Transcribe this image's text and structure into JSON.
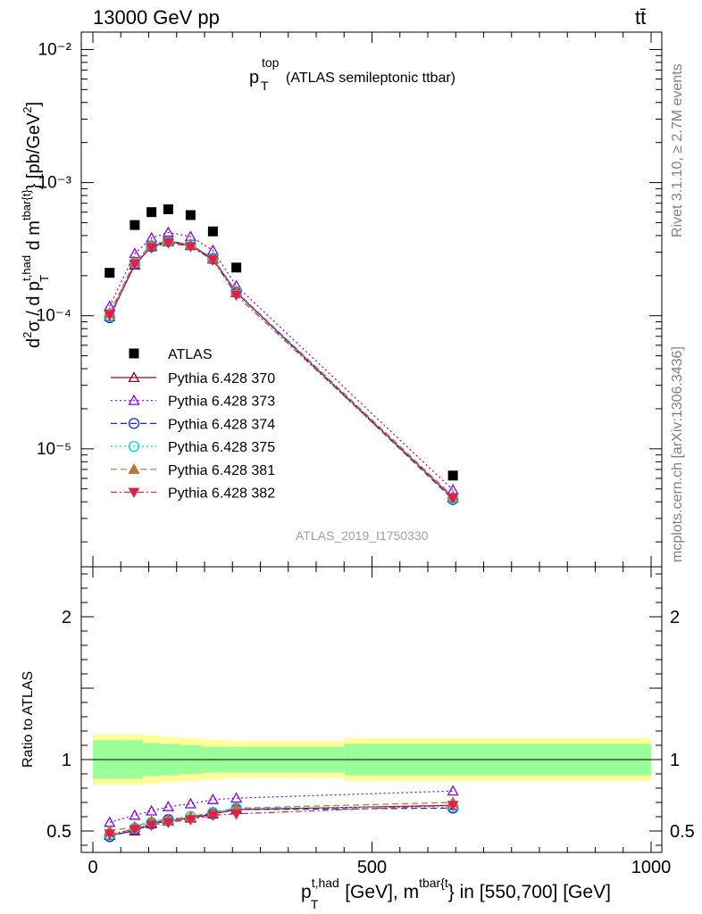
{
  "header": {
    "energy_label": "13000 GeV pp",
    "process_label": "tt̄"
  },
  "side_labels": {
    "rivet": "Rivet 3.1.10, ≥ 2.7M events",
    "mcplots": "mcplots.cern.ch [arXiv:1306.3436]"
  },
  "chart_data": {
    "type": "scatter",
    "title": {
      "main": "p",
      "sup": "top",
      "sub": "T",
      "rest": "(ATLAS semileptonic ttbar)"
    },
    "watermark": "ATLAS_2019_I1750330",
    "ylabel_main": "d²σ / d p_T^{t,had} d m^{tbar{t}} [pb/GeV²]",
    "ylabel_ratio": "Ratio to ATLAS",
    "xlabel": "p_T^{t,had} [GeV], m^{tbar{t}} in [550,700] [GeV]",
    "xlim": [
      0,
      1000
    ],
    "ylim_main": [
      1.3e-06,
      0.0135
    ],
    "yscale_main": "log",
    "ylim_ratio": [
      0.35,
      2.35
    ],
    "x_ticks": [
      "0",
      "500",
      "1000"
    ],
    "y_ticks_main": [
      "10⁻⁵",
      "10⁻⁴",
      "10⁻³",
      "10⁻²"
    ],
    "y_ticks_ratio": [
      "0.5",
      "1",
      "2"
    ],
    "legend_position": "left-middle",
    "x": [
      30,
      75,
      105,
      135,
      175,
      215,
      257,
      645
    ],
    "data": {
      "name": "ATLAS",
      "values": [
        0.00021,
        0.00048,
        0.0006,
        0.00063,
        0.00057,
        0.00043,
        0.00023,
        6.3e-06
      ],
      "band_inner_halfwidth": [
        0.135,
        0.135,
        0.115,
        0.11,
        0.1,
        0.09,
        0.09,
        0.11
      ],
      "band_outer_halfwidth": [
        0.175,
        0.175,
        0.17,
        0.16,
        0.15,
        0.14,
        0.13,
        0.15
      ]
    },
    "series": [
      {
        "name": "Pythia 6.428 370",
        "color": "#8b0a1e",
        "marker": "triangle-up-open",
        "dash": "",
        "ratio": [
          0.47,
          0.5,
          0.55,
          0.57,
          0.59,
          0.62,
          0.65,
          0.68
        ]
      },
      {
        "name": "Pythia 6.428 373",
        "color": "#8a00e6",
        "marker": "triangle-up-open",
        "dash": "2,3",
        "ratio": [
          0.56,
          0.61,
          0.64,
          0.67,
          0.69,
          0.72,
          0.73,
          0.78
        ]
      },
      {
        "name": "Pythia 6.428 374",
        "color": "#2020e0",
        "marker": "circle-open",
        "dash": "7,4",
        "ratio": [
          0.46,
          0.51,
          0.55,
          0.58,
          0.6,
          0.62,
          0.65,
          0.66
        ]
      },
      {
        "name": "Pythia 6.428 375",
        "color": "#00d8c0",
        "marker": "circle-open",
        "dash": "2,3",
        "ratio": [
          0.47,
          0.52,
          0.56,
          0.57,
          0.6,
          0.63,
          0.66,
          0.67
        ]
      },
      {
        "name": "Pythia 6.428 381",
        "color": "#b07840",
        "marker": "triangle-up-filled",
        "dash": "7,4",
        "ratio": [
          0.5,
          0.53,
          0.57,
          0.58,
          0.6,
          0.63,
          0.66,
          0.7
        ]
      },
      {
        "name": "Pythia 6.428 382",
        "color": "#e0204a",
        "marker": "triangle-down-filled",
        "dash": "7,3,2,3",
        "ratio": [
          0.48,
          0.51,
          0.54,
          0.56,
          0.58,
          0.61,
          0.62,
          0.68
        ]
      }
    ]
  }
}
